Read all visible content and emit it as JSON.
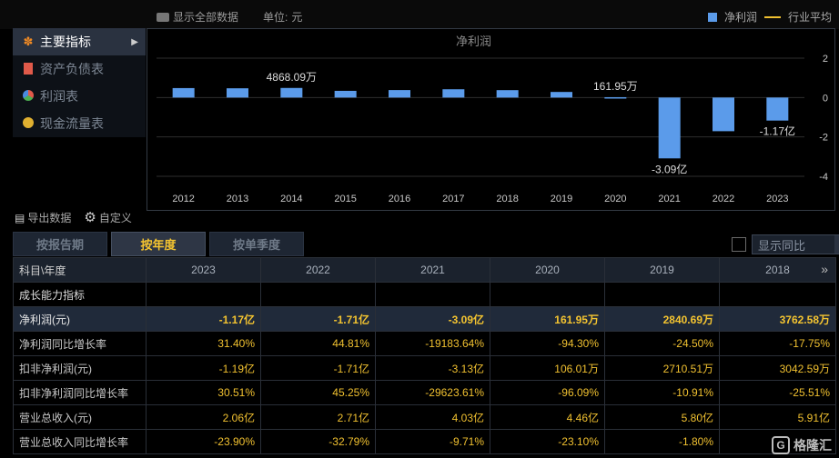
{
  "toolbar": {
    "show_all_label": "显示全部数据",
    "unit_label": "单位:",
    "unit_value": "元",
    "legend_net_profit": "净利润",
    "legend_industry_avg": "行业平均"
  },
  "side_menu": {
    "items": [
      {
        "label": "主要指标",
        "icon": "flower-icon",
        "active": true
      },
      {
        "label": "资产负债表",
        "icon": "document-icon",
        "active": false
      },
      {
        "label": "利润表",
        "icon": "pie-icon",
        "active": false
      },
      {
        "label": "现金流量表",
        "icon": "coins-icon",
        "active": false
      }
    ]
  },
  "chart_data": {
    "type": "bar",
    "title": "净利润",
    "categories": [
      "2012",
      "2013",
      "2014",
      "2015",
      "2016",
      "2017",
      "2018",
      "2019",
      "2020",
      "2021",
      "2022",
      "2023"
    ],
    "series": [
      {
        "name": "净利润",
        "values": [
          0.48,
          0.47,
          0.4868,
          0.34,
          0.38,
          0.42,
          0.376,
          0.284,
          0.0162,
          -3.09,
          -1.71,
          -1.17
        ]
      }
    ],
    "unit": "亿",
    "data_labels": [
      {
        "category": "2014",
        "text": "4868.09万"
      },
      {
        "category": "2020",
        "text": "161.95万"
      },
      {
        "category": "2021",
        "text": "-3.09亿"
      },
      {
        "category": "2023",
        "text": "-1.17亿"
      }
    ],
    "y_ticks": [
      "2",
      "0",
      "-2",
      "-4"
    ],
    "ylim": [
      -4,
      2
    ],
    "grid": true,
    "y_axis_side": "right",
    "bar_color": "#5b9bea"
  },
  "tools": {
    "export_label": "导出数据",
    "custom_label": "自定义"
  },
  "tabs": [
    {
      "label": "按报告期",
      "active": false
    },
    {
      "label": "按年度",
      "active": true
    },
    {
      "label": "按单季度",
      "active": false
    }
  ],
  "compare": {
    "label": "显示同比"
  },
  "table": {
    "header_first": "科目\\年度",
    "years": [
      "2023",
      "2022",
      "2021",
      "2020",
      "2019",
      "2018"
    ],
    "rows": [
      {
        "type": "section",
        "label": "成长能力指标",
        "values": [
          "",
          "",
          "",
          "",
          "",
          ""
        ]
      },
      {
        "type": "highlight",
        "label": "净利润(元)",
        "values": [
          "-1.17亿",
          "-1.71亿",
          "-3.09亿",
          "161.95万",
          "2840.69万",
          "3762.58万"
        ]
      },
      {
        "type": "normal",
        "label": "净利润同比增长率",
        "values": [
          "31.40%",
          "44.81%",
          "-19183.64%",
          "-94.30%",
          "-24.50%",
          "-17.75%"
        ]
      },
      {
        "type": "normal",
        "label": "扣非净利润(元)",
        "values": [
          "-1.19亿",
          "-1.71亿",
          "-3.13亿",
          "106.01万",
          "2710.51万",
          "3042.59万"
        ]
      },
      {
        "type": "normal",
        "label": "扣非净利润同比增长率",
        "values": [
          "30.51%",
          "45.25%",
          "-29623.61%",
          "-96.09%",
          "-10.91%",
          "-25.51%"
        ]
      },
      {
        "type": "normal",
        "label": "营业总收入(元)",
        "values": [
          "2.06亿",
          "2.71亿",
          "4.03亿",
          "4.46亿",
          "5.80亿",
          "5.91亿"
        ]
      },
      {
        "type": "normal",
        "label": "营业总收入同比增长率",
        "values": [
          "-23.90%",
          "-32.79%",
          "-9.71%",
          "-23.10%",
          "-1.80%",
          ""
        ]
      }
    ]
  },
  "watermark": {
    "text": "格隆汇"
  }
}
